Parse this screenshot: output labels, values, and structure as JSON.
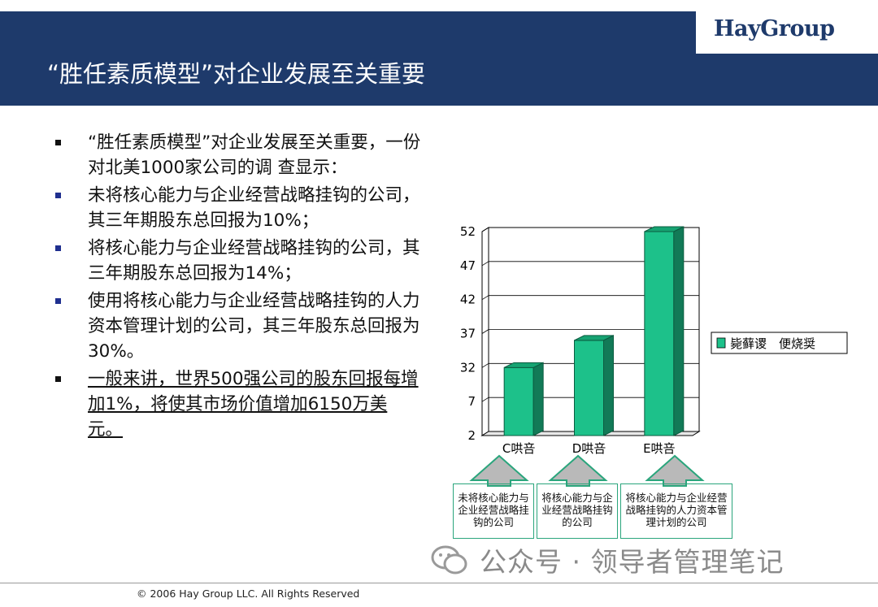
{
  "header": {
    "title": "“胜任素质模型”对企业发展至关重要",
    "logo": "HayGroup"
  },
  "bullets": [
    {
      "text": "“胜任素质模型”对企业发展至关重要，一份对北美1000家公司的调  查显示：",
      "style": "black"
    },
    {
      "text": "未将核心能力与企业经营战略挂钩的公司，其三年期股东总回报为10%；",
      "style": "blue"
    },
    {
      "text": "将核心能力与企业经营战略挂钩的公司，其三年期股东总回报为14%；",
      "style": "blue"
    },
    {
      "text": "使用将核心能力与企业经营战略挂钩的人力资本管理计划的公司，其三年股东总回报为30%。",
      "style": "blue"
    },
    {
      "text": "一般来讲，世界500强公司的股东回报每增加1%，将使其市场价值增加6150万美元。",
      "style": "black-underline"
    }
  ],
  "chart_data": {
    "type": "bar",
    "categories": [
      "C哄咅",
      "D哄咅",
      "E哄咅"
    ],
    "values": [
      32,
      36,
      52
    ],
    "y_tick_labels": [
      "2",
      "7",
      "32",
      "37",
      "42",
      "47",
      "52"
    ],
    "legend": "毙藓谡　便烧奨",
    "legend_position": "right",
    "grid": true,
    "colors": {
      "bar_front": "#1dc18a",
      "bar_side": "#127a57",
      "bar_top": "#16a372",
      "legend_box": "#1dc18a"
    }
  },
  "callouts": [
    "未将核心能力与企业经营战略挂钩的公司",
    "将核心能力与企业经营战略挂钩的公司",
    "将核心能力与企业经营战略挂钩的人力资本管理计划的公司"
  ],
  "watermark": "公众号 · 领导者管理笔记",
  "footer": "© 2006 Hay Group LLC. All Rights Reserved"
}
